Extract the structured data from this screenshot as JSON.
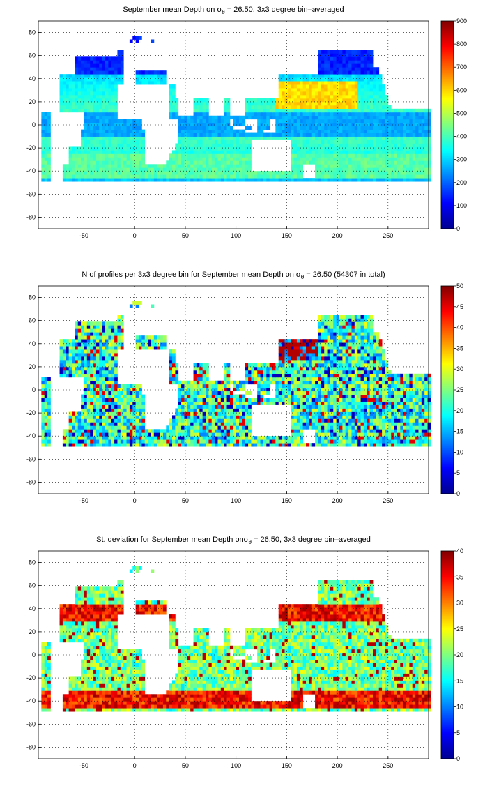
{
  "chart_data": [
    {
      "type": "heatmap",
      "title_pre": "September mean Depth on σ",
      "title_sub": "θ",
      "title_post": " = 26.50, 3x3 degree bin–averaged",
      "xticks": [
        "-50",
        "0",
        "50",
        "100",
        "150",
        "200",
        "250"
      ],
      "yticks": [
        "80",
        "60",
        "40",
        "20",
        "0",
        "-20",
        "-40",
        "-60",
        "-80"
      ],
      "xlim": [
        -95,
        290
      ],
      "ylim": [
        -90,
        90
      ],
      "colorbar": {
        "min": 0,
        "max": 900,
        "ticks": [
          "900",
          "800",
          "700",
          "600",
          "500",
          "400",
          "300",
          "200",
          "100",
          "0"
        ]
      },
      "colormap": "jet",
      "grid": true
    },
    {
      "type": "heatmap",
      "title_pre": "N of profiles per 3x3 degree bin for September mean Depth on σ",
      "title_sub": "θ",
      "title_post": " = 26.50 (54307 in total)",
      "xticks": [
        "-50",
        "0",
        "50",
        "100",
        "150",
        "200",
        "250"
      ],
      "yticks": [
        "80",
        "60",
        "40",
        "20",
        "0",
        "-20",
        "-40",
        "-60",
        "-80"
      ],
      "xlim": [
        -95,
        290
      ],
      "ylim": [
        -90,
        90
      ],
      "colorbar": {
        "min": 0,
        "max": 50,
        "ticks": [
          "50",
          "45",
          "40",
          "35",
          "30",
          "25",
          "20",
          "15",
          "10",
          "5",
          "0"
        ]
      },
      "colormap": "jet",
      "grid": true
    },
    {
      "type": "heatmap",
      "title_pre": "St. deviation for September mean Depth onσ",
      "title_sub": "θ",
      "title_post": " = 26.50, 3x3 degree bin–averaged",
      "xticks": [
        "-50",
        "0",
        "50",
        "100",
        "150",
        "200",
        "250"
      ],
      "yticks": [
        "80",
        "60",
        "40",
        "20",
        "0",
        "-20",
        "-40",
        "-60",
        "-80"
      ],
      "xlim": [
        -95,
        290
      ],
      "ylim": [
        -90,
        90
      ],
      "colorbar": {
        "min": 0,
        "max": 40,
        "ticks": [
          "40",
          "35",
          "30",
          "25",
          "20",
          "15",
          "10",
          "5",
          "0"
        ]
      },
      "colormap": "jet",
      "grid": true
    }
  ]
}
